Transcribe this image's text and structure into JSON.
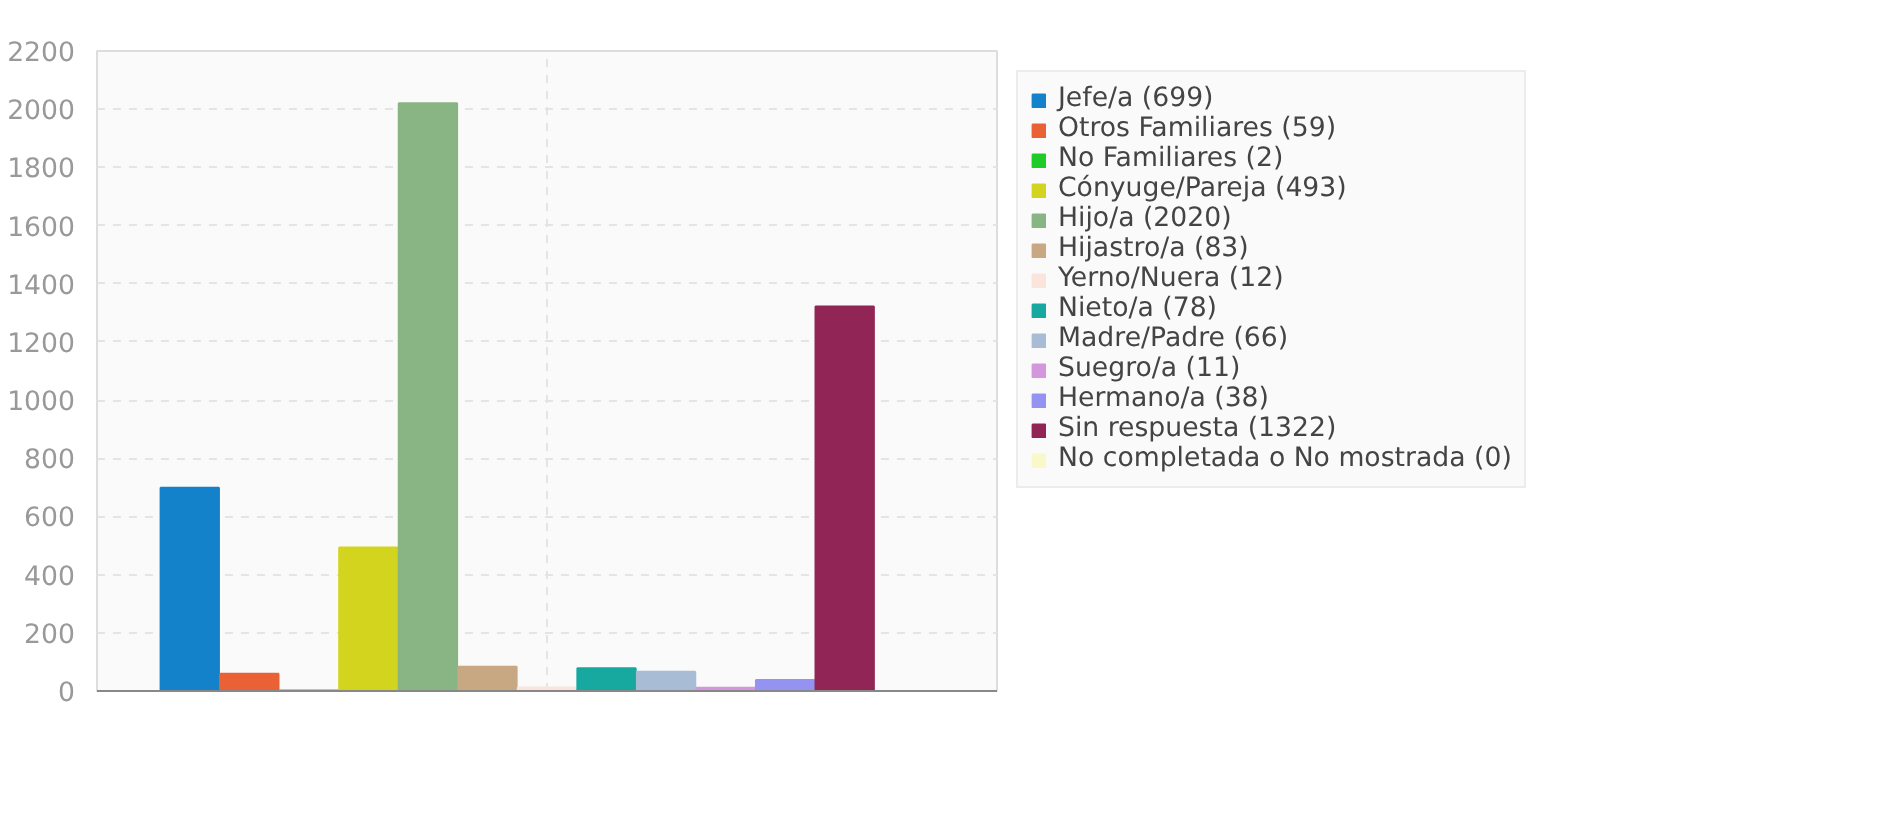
{
  "chart_data": {
    "type": "bar",
    "categories": [
      null
    ],
    "series": [
      {
        "name": "Jefe/a (699)",
        "color": "#1482cb",
        "values": [
          699
        ]
      },
      {
        "name": "Otros Familiares (59)",
        "color": "#e96134",
        "values": [
          59
        ]
      },
      {
        "name": "No Familiares (2)",
        "color": "#1fcb26",
        "values": [
          2
        ]
      },
      {
        "name": "Cónyuge/Pareja (493)",
        "color": "#d3d41d",
        "values": [
          493
        ]
      },
      {
        "name": "Hijo/a (2020)",
        "color": "#89b483",
        "values": [
          2020
        ]
      },
      {
        "name": "Hijastro/a (83)",
        "color": "#c8a882",
        "values": [
          83
        ]
      },
      {
        "name": "Yerno/Nuera (12)",
        "color": "#fbe4dc",
        "values": [
          12
        ]
      },
      {
        "name": "Nieto/a (78)",
        "color": "#17a8a0",
        "values": [
          78
        ]
      },
      {
        "name": "Madre/Padre (66)",
        "color": "#a8bcd6",
        "values": [
          66
        ]
      },
      {
        "name": "Suegro/a (11)",
        "color": "#d496dc",
        "values": [
          11
        ]
      },
      {
        "name": "Hermano/a (38)",
        "color": "#9593f2",
        "values": [
          38
        ]
      },
      {
        "name": "Sin respuesta (1322)",
        "color": "#912556",
        "values": [
          1322
        ]
      },
      {
        "name": "No completada o No mostrada (0)",
        "color": "#f8f8c8",
        "values": [
          0
        ]
      }
    ],
    "ylim": [
      0,
      2200
    ],
    "yticks": [
      0,
      200,
      400,
      600,
      800,
      1000,
      1200,
      1400,
      1600,
      1800,
      2000,
      2200
    ],
    "grid": true,
    "legend": "right"
  }
}
